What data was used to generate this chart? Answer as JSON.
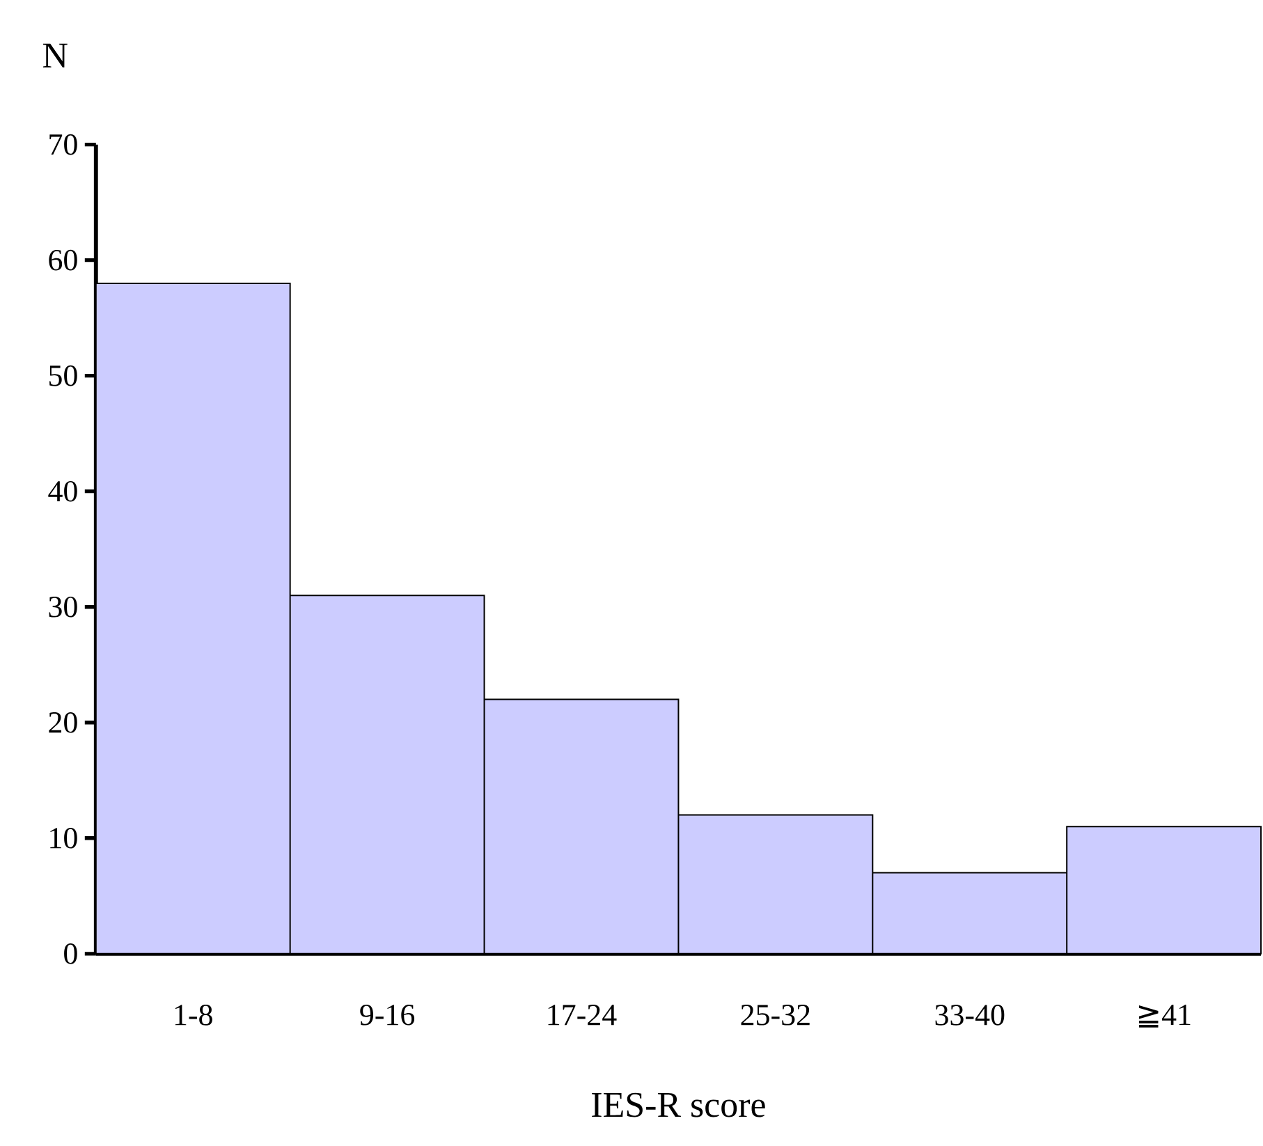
{
  "chart_data": {
    "type": "bar",
    "ylabel": "N",
    "xlabel": "IES-R score",
    "categories": [
      "1-8",
      "9-16",
      "17-24",
      "25-32",
      "33-40",
      "≧41"
    ],
    "values": [
      58,
      31,
      22,
      12,
      7,
      11
    ],
    "color": "#ccccff",
    "ylim": [
      0,
      70
    ],
    "yticks": [
      0,
      10,
      20,
      30,
      40,
      50,
      60,
      70
    ]
  }
}
